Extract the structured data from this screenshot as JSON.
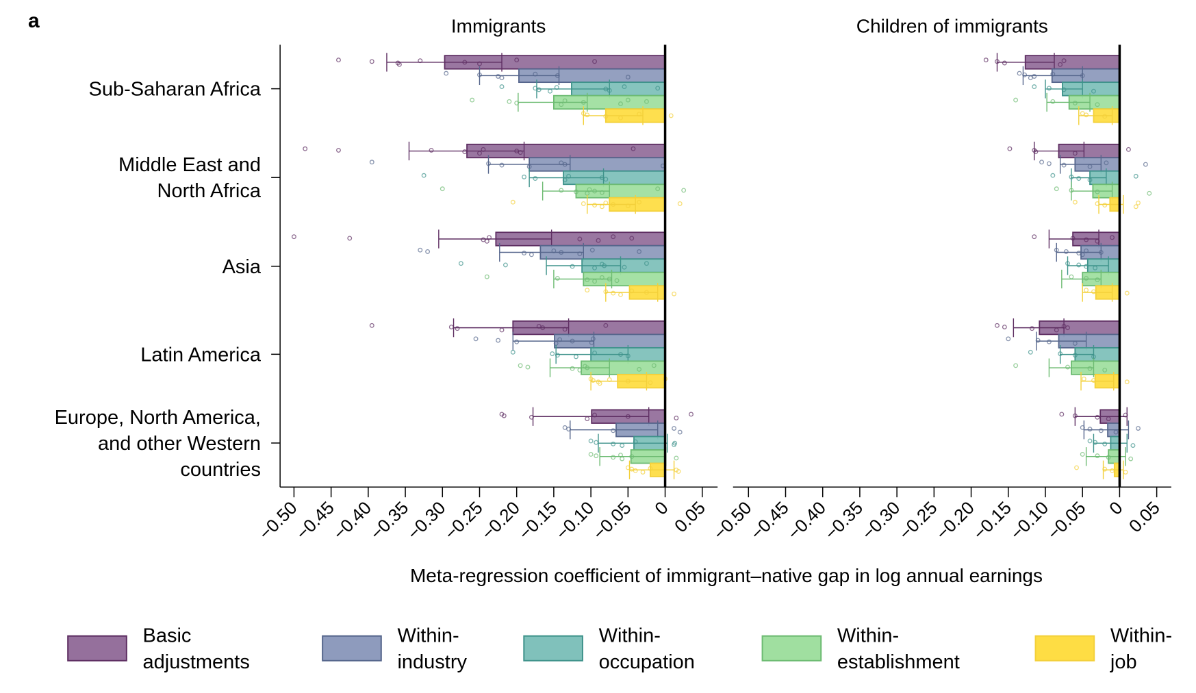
{
  "panel_label": "a",
  "chart_data": {
    "type": "bar",
    "orientation": "horizontal",
    "xlabel": "Meta-regression coefficient of immigrant–native gap in log annual earnings",
    "xlim": [
      -0.52,
      0.07
    ],
    "xticks": [
      -0.5,
      -0.45,
      -0.4,
      -0.35,
      -0.3,
      -0.25,
      -0.2,
      -0.15,
      -0.1,
      -0.05,
      0,
      0.05
    ],
    "xtick_labels": [
      "−0.50",
      "−0.45",
      "−0.40",
      "−0.35",
      "−0.30",
      "−0.25",
      "−0.20",
      "−0.15",
      "−0.10",
      "−0.05",
      "0",
      "0.05"
    ],
    "categories": [
      "Sub-Saharan Africa",
      "Middle East and North Africa",
      "Asia",
      "Latin America",
      "Europe, North America, and other Western countries"
    ],
    "category_label_lines": [
      [
        "Sub-Saharan Africa"
      ],
      [
        "Middle East and",
        "North Africa"
      ],
      [
        "Asia"
      ],
      [
        "Latin America"
      ],
      [
        "Europe, North America,",
        "and other Western",
        "countries"
      ]
    ],
    "legend": {
      "placement": "bottom",
      "entries": [
        {
          "name": "Basic adjustments",
          "lines": [
            "Basic",
            "adjustments"
          ],
          "color": "#95709c",
          "edge": "#5e2e62"
        },
        {
          "name": "Within-industry",
          "lines": [
            "Within-",
            "industry"
          ],
          "color": "#8e9bbd",
          "edge": "#56668c"
        },
        {
          "name": "Within-occupation",
          "lines": [
            "Within-",
            "occupation"
          ],
          "color": "#80c1bb",
          "edge": "#3f938b"
        },
        {
          "name": "Within-establishment",
          "lines": [
            "Within-",
            "establishment"
          ],
          "color": "#a0dfa0",
          "edge": "#6dbb72"
        },
        {
          "name": "Within-job",
          "lines": [
            "Within-",
            "job"
          ],
          "color": "#fedd44",
          "edge": "#f3d03a"
        }
      ]
    },
    "panels": [
      {
        "title": "Immigrants",
        "series": [
          {
            "name": "Basic adjustments",
            "values": [
              -0.297,
              -0.267,
              -0.228,
              -0.205,
              -0.099
            ],
            "ci": [
              [
                -0.375,
                -0.22
              ],
              [
                -0.345,
                -0.19
              ],
              [
                -0.305,
                -0.153
              ],
              [
                -0.285,
                -0.13
              ],
              [
                -0.178,
                -0.022
              ]
            ],
            "points": [
              [
                -0.44,
                -0.395,
                -0.36,
                -0.358,
                -0.33,
                -0.27,
                -0.25,
                -0.2,
                -0.095
              ],
              [
                -0.485,
                -0.44,
                -0.27,
                -0.25,
                -0.245,
                -0.2,
                -0.195,
                -0.043,
                -0.315
              ],
              [
                -0.5,
                -0.425,
                -0.245,
                -0.24,
                -0.237,
                -0.115,
                -0.09,
                -0.07,
                -0.045
              ],
              [
                -0.395,
                -0.288,
                -0.28,
                -0.22,
                -0.17,
                -0.165,
                -0.135,
                -0.08
              ],
              [
                -0.22,
                -0.217,
                -0.18,
                -0.105,
                -0.095,
                -0.05,
                0.015,
                0.035
              ]
            ]
          },
          {
            "name": "Within-industry",
            "values": [
              -0.197,
              -0.183,
              -0.168,
              -0.149,
              -0.066
            ],
            "ci": [
              [
                -0.25,
                -0.143
              ],
              [
                -0.238,
                -0.128
              ],
              [
                -0.223,
                -0.11
              ],
              [
                -0.205,
                -0.096
              ],
              [
                -0.128,
                -0.01
              ]
            ],
            "points": [
              [
                -0.295,
                -0.25,
                -0.225,
                -0.22,
                -0.175,
                -0.145,
                -0.05
              ],
              [
                -0.395,
                -0.238,
                -0.22,
                -0.183,
                -0.14,
                -0.135,
                -0.003
              ],
              [
                -0.33,
                -0.32,
                -0.19,
                -0.18,
                -0.15,
                -0.14,
                -0.115,
                -0.098,
                -0.035
              ],
              [
                -0.255,
                -0.225,
                -0.2,
                -0.147,
                -0.142,
                -0.125,
                -0.099,
                -0.097
              ],
              [
                -0.135,
                -0.13,
                -0.07,
                0.02,
                0.012
              ]
            ]
          },
          {
            "name": "Within-occupation",
            "values": [
              -0.126,
              -0.137,
              -0.112,
              -0.1,
              -0.042
            ],
            "ci": [
              [
                -0.173,
                -0.075
              ],
              [
                -0.183,
                -0.083
              ],
              [
                -0.16,
                -0.06
              ],
              [
                -0.147,
                -0.05
              ],
              [
                -0.09,
                0.003
              ]
            ],
            "points": [
              [
                -0.22,
                -0.175,
                -0.17,
                -0.155,
                -0.146,
                -0.08,
                -0.075,
                -0.055,
                -0.01
              ],
              [
                -0.325,
                -0.19,
                -0.175,
                -0.135,
                -0.13,
                -0.085,
                -0.08
              ],
              [
                -0.275,
                -0.215,
                -0.125,
                -0.095,
                -0.085,
                -0.082,
                -0.055,
                -0.025
              ],
              [
                -0.205,
                -0.152,
                -0.145,
                -0.12,
                -0.095,
                -0.06,
                -0.05
              ],
              [
                -0.1,
                -0.093,
                -0.07,
                -0.058,
                -0.04,
                0.013,
                0.012
              ]
            ]
          },
          {
            "name": "Within-establishment",
            "values": [
              -0.15,
              -0.12,
              -0.11,
              -0.113,
              -0.046
            ],
            "ci": [
              [
                -0.198,
                -0.105
              ],
              [
                -0.165,
                -0.075
              ],
              [
                -0.15,
                -0.072
              ],
              [
                -0.155,
                -0.075
              ],
              [
                -0.088,
                0.001
              ]
            ],
            "points": [
              [
                -0.26,
                -0.21,
                -0.2,
                -0.14,
                -0.135,
                -0.11,
                -0.06,
                -0.05,
                -0.025
              ],
              [
                -0.3,
                -0.14,
                -0.12,
                -0.105,
                -0.102,
                -0.095,
                -0.085,
                -0.01,
                0.025
              ],
              [
                -0.24,
                -0.145,
                -0.105,
                -0.095,
                -0.085,
                -0.075,
                -0.065
              ],
              [
                -0.195,
                -0.185,
                -0.125,
                -0.115,
                -0.108,
                -0.105,
                -0.035,
                -0.015
              ],
              [
                -0.1,
                -0.093,
                -0.07,
                -0.058,
                -0.06,
                -0.045,
                0.015
              ]
            ]
          },
          {
            "name": "Within-job",
            "values": [
              -0.08,
              -0.075,
              -0.048,
              -0.064,
              -0.02
            ],
            "ci": [
              [
                -0.11,
                -0.03
              ],
              [
                -0.105,
                -0.04
              ],
              [
                -0.08,
                -0.01
              ],
              [
                -0.1,
                -0.025
              ],
              [
                -0.048,
                0.012
              ]
            ],
            "points": [
              [
                -0.11,
                -0.105,
                -0.08,
                -0.06,
                -0.035,
                0.008
              ],
              [
                -0.205,
                -0.11,
                -0.095,
                -0.085,
                -0.08,
                -0.07,
                -0.05,
                -0.035,
                0.02
              ],
              [
                -0.105,
                -0.08,
                -0.07,
                -0.06,
                -0.045,
                -0.025,
                0.012
              ],
              [
                -0.1,
                -0.097,
                -0.09,
                -0.088,
                -0.075,
                -0.05,
                -0.02,
                0.0
              ],
              [
                -0.05,
                -0.045,
                -0.04,
                -0.03,
                -0.02,
                0.015,
                0.018
              ]
            ]
          }
        ]
      },
      {
        "title": "Children of immigrants",
        "series": [
          {
            "name": "Basic adjustments",
            "values": [
              -0.127,
              -0.082,
              -0.063,
              -0.108,
              -0.026
            ],
            "ci": [
              [
                -0.165,
                -0.088
              ],
              [
                -0.115,
                -0.048
              ],
              [
                -0.095,
                -0.028
              ],
              [
                -0.143,
                -0.075
              ],
              [
                -0.06,
                0.01
              ]
            ],
            "points": [
              [
                -0.18,
                -0.165,
                -0.155,
                -0.08,
                -0.075
              ],
              [
                -0.148,
                -0.115,
                -0.113,
                -0.06,
                0.012
              ],
              [
                -0.115,
                -0.063,
                -0.045,
                -0.03,
                -0.01
              ],
              [
                -0.165,
                -0.155,
                -0.118,
                -0.085,
                -0.075,
                -0.07
              ],
              [
                -0.078,
                -0.06,
                -0.03,
                -0.015,
                0.008
              ]
            ]
          },
          {
            "name": "Within-industry",
            "values": [
              -0.091,
              -0.06,
              -0.052,
              -0.082,
              -0.016
            ],
            "ci": [
              [
                -0.13,
                -0.05
              ],
              [
                -0.08,
                -0.025
              ],
              [
                -0.085,
                -0.025
              ],
              [
                -0.112,
                -0.045
              ],
              [
                -0.048,
                0.012
              ]
            ],
            "points": [
              [
                -0.135,
                -0.128,
                -0.115,
                -0.12,
                -0.09,
                -0.05
              ],
              [
                -0.105,
                -0.095,
                -0.075,
                -0.04,
                -0.018,
                0.035
              ],
              [
                -0.085,
                -0.072,
                -0.055,
                -0.05,
                -0.045,
                -0.025
              ],
              [
                -0.15,
                -0.11,
                -0.095,
                -0.06
              ],
              [
                -0.05,
                -0.04,
                -0.025,
                -0.005,
                0.025
              ]
            ]
          },
          {
            "name": "Within-occupation",
            "values": [
              -0.077,
              -0.04,
              -0.043,
              -0.06,
              -0.012
            ],
            "ci": [
              [
                -0.1,
                -0.05
              ],
              [
                -0.065,
                -0.018
              ],
              [
                -0.07,
                -0.015
              ],
              [
                -0.08,
                -0.035
              ],
              [
                -0.035,
                0.01
              ]
            ],
            "points": [
              [
                -0.115,
                -0.095,
                -0.075,
                -0.035
              ],
              [
                -0.09,
                -0.065,
                -0.055,
                -0.04,
                0.022
              ],
              [
                -0.07,
                -0.055,
                -0.045,
                -0.033
              ],
              [
                -0.12,
                -0.08,
                -0.06,
                -0.035
              ],
              [
                -0.04,
                -0.033,
                -0.02,
                0.018
              ]
            ]
          },
          {
            "name": "Within-establishment",
            "values": [
              -0.068,
              -0.036,
              -0.05,
              -0.065,
              -0.015
            ],
            "ci": [
              [
                -0.098,
                -0.04
              ],
              [
                -0.065,
                -0.01
              ],
              [
                -0.078,
                -0.025
              ],
              [
                -0.095,
                -0.035
              ],
              [
                -0.045,
                0.008
              ]
            ],
            "points": [
              [
                -0.14,
                -0.09,
                -0.06,
                -0.03
              ],
              [
                -0.085,
                -0.065,
                -0.03,
                0.04
              ],
              [
                -0.065,
                -0.045,
                -0.03
              ],
              [
                -0.14,
                -0.07,
                -0.04,
                -0.02
              ],
              [
                -0.05,
                -0.03,
                -0.015,
                0.015
              ]
            ]
          },
          {
            "name": "Within-job",
            "values": [
              -0.035,
              -0.013,
              -0.032,
              -0.033,
              -0.007
            ],
            "ci": [
              [
                -0.055,
                -0.01
              ],
              [
                -0.028,
                0.005
              ],
              [
                -0.05,
                -0.01
              ],
              [
                -0.052,
                -0.008
              ],
              [
                -0.022,
                0.005
              ]
            ],
            "points": [
              [
                -0.05,
                -0.045,
                -0.02
              ],
              [
                -0.06,
                -0.03,
                -0.02,
                0.022,
                0.025
              ],
              [
                -0.045,
                -0.035,
                0.01
              ],
              [
                -0.048,
                -0.035,
                0.01
              ],
              [
                -0.058,
                -0.02,
                -0.01,
                0.008
              ]
            ]
          }
        ]
      }
    ]
  }
}
